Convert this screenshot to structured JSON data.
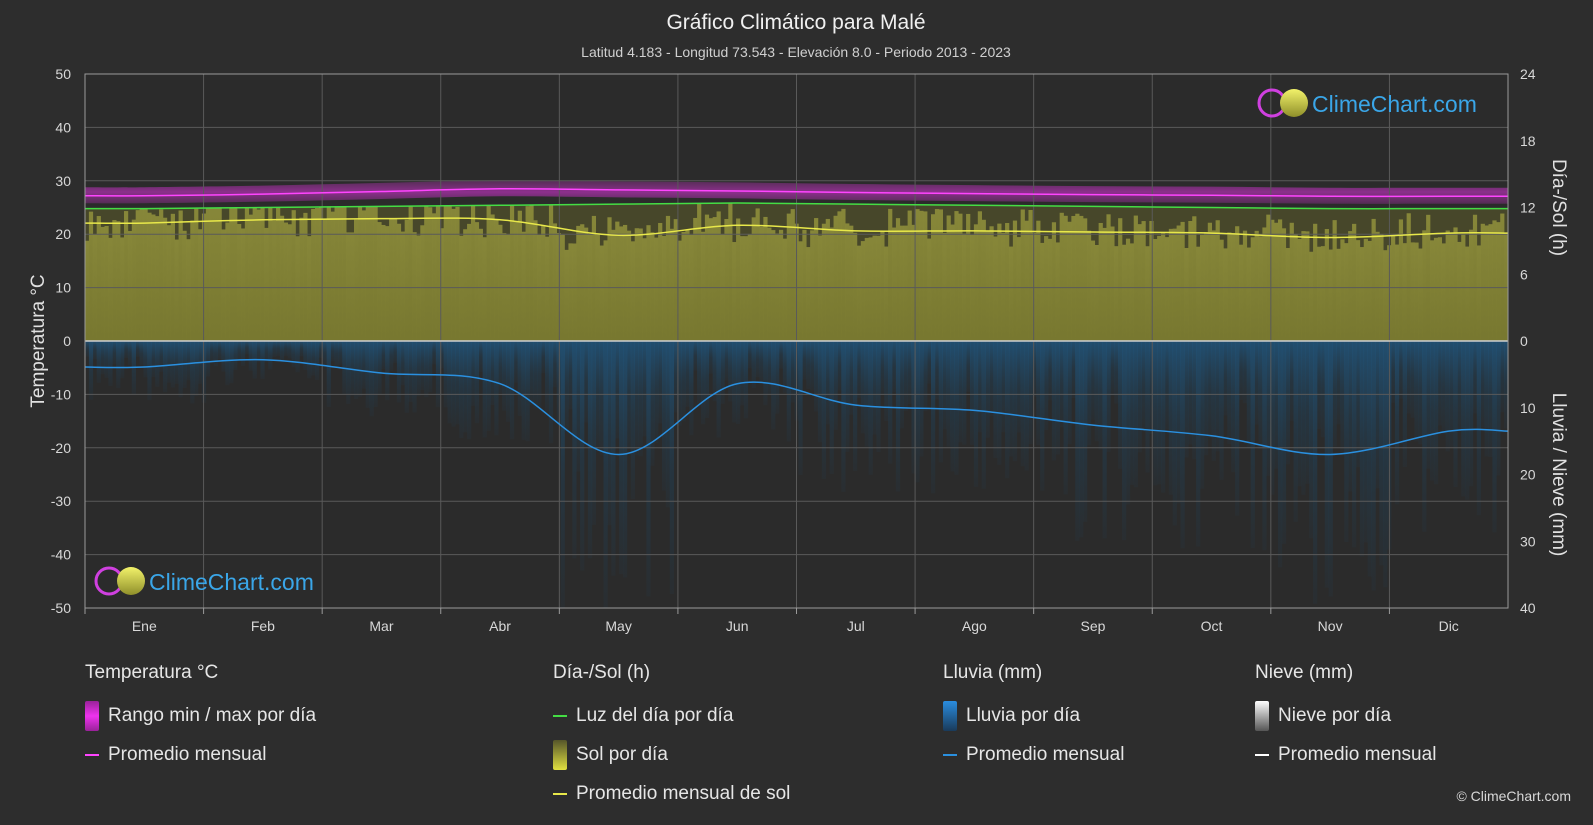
{
  "header": {
    "title": "Gráfico Climático para Malé",
    "subtitle": "Latitud 4.183 - Longitud 73.543 - Elevación 8.0 - Periodo 2013 - 2023"
  },
  "brand": {
    "logo_text": "ClimeChart.com",
    "copyright": "© ClimeChart.com"
  },
  "chart_data": {
    "type": "line",
    "categories": [
      "Ene",
      "Feb",
      "Mar",
      "Abr",
      "May",
      "Jun",
      "Jul",
      "Ago",
      "Sep",
      "Oct",
      "Nov",
      "Dic"
    ],
    "axes": {
      "left": {
        "label": "Temperatura °C",
        "range": [
          -50,
          50
        ],
        "ticks": [
          -50,
          -40,
          -30,
          -20,
          -10,
          0,
          10,
          20,
          30,
          40,
          50
        ]
      },
      "right_top": {
        "label": "Día-/Sol (h)",
        "range": [
          0,
          24
        ],
        "ticks": [
          0,
          6,
          12,
          18,
          24
        ]
      },
      "right_bottom": {
        "label": "Lluvia / Nieve (mm)",
        "range": [
          0,
          40
        ],
        "ticks": [
          10,
          20,
          30,
          40
        ]
      }
    },
    "grid": true,
    "series": [
      {
        "name": "Promedio mensual",
        "group": "Temperatura °C",
        "color": "#ff44ff",
        "unit": "°C",
        "values": [
          27.2,
          27.5,
          28.0,
          28.5,
          28.3,
          28.1,
          27.8,
          27.6,
          27.4,
          27.3,
          27.1,
          27.1
        ]
      },
      {
        "name": "Luz del día por día",
        "group": "Día-/Sol (h)",
        "color": "#44dd44",
        "unit": "h",
        "values": [
          11.9,
          12.0,
          12.1,
          12.2,
          12.3,
          12.4,
          12.3,
          12.2,
          12.1,
          12.0,
          11.9,
          11.9
        ]
      },
      {
        "name": "Promedio mensual de sol",
        "group": "Día-/Sol (h)",
        "color": "#e8e84a",
        "unit": "h",
        "values": [
          10.6,
          10.9,
          11.0,
          10.9,
          9.5,
          10.4,
          9.9,
          9.9,
          9.8,
          9.7,
          9.3,
          9.7
        ]
      },
      {
        "name": "Promedio mensual",
        "group": "Lluvia (mm)",
        "color": "#2a90e0",
        "unit": "mm",
        "values": [
          3.9,
          2.8,
          4.8,
          6.4,
          17.0,
          6.4,
          9.6,
          10.4,
          12.6,
          14.2,
          17.0,
          13.5
        ]
      }
    ]
  },
  "legend": {
    "groups": [
      {
        "title": "Temperatura °C",
        "items": [
          {
            "label": "Rango min / max por día",
            "swatch": "box",
            "color": "#dd22dd"
          },
          {
            "label": "Promedio mensual",
            "swatch": "line",
            "color": "#ff44ff"
          }
        ]
      },
      {
        "title": "Día-/Sol (h)",
        "items": [
          {
            "label": "Luz del día por día",
            "swatch": "line",
            "color": "#44dd44"
          },
          {
            "label": "Sol por día",
            "swatch": "box",
            "color": "#d8d840"
          },
          {
            "label": "Promedio mensual de sol",
            "swatch": "line",
            "color": "#e8e84a"
          }
        ]
      },
      {
        "title": "Lluvia (mm)",
        "items": [
          {
            "label": "Lluvia por día",
            "swatch": "box",
            "color": "#2a8de0"
          },
          {
            "label": "Promedio mensual",
            "swatch": "line",
            "color": "#2a90e0"
          }
        ]
      },
      {
        "title": "Nieve (mm)",
        "items": [
          {
            "label": "Nieve por día",
            "swatch": "box",
            "color": "#dddddd"
          },
          {
            "label": "Promedio mensual",
            "swatch": "line",
            "color": "#ffffff"
          }
        ]
      }
    ]
  }
}
